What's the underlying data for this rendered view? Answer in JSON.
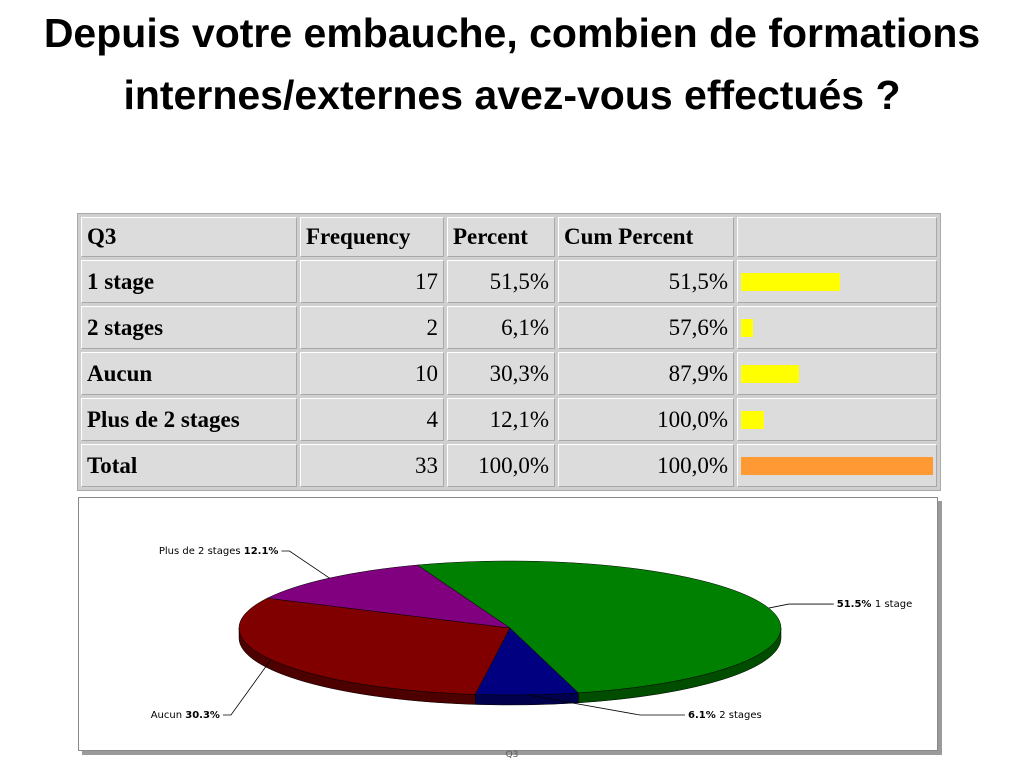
{
  "slide": {
    "title": "Depuis votre embauche, combien de formations internes/externes avez-vous effectués ?"
  },
  "table": {
    "headers": [
      "Q3",
      "Frequency",
      "Percent",
      "Cum Percent",
      ""
    ],
    "rows": [
      {
        "label": "1 stage",
        "frequency": "17",
        "percent": "51,5%",
        "cum_percent": "51,5%",
        "bar_fraction": 0.515,
        "bar_color": "#ffff00"
      },
      {
        "label": "2 stages",
        "frequency": "2",
        "percent": "6,1%",
        "cum_percent": "57,6%",
        "bar_fraction": 0.061,
        "bar_color": "#ffff00"
      },
      {
        "label": "Aucun",
        "frequency": "10",
        "percent": "30,3%",
        "cum_percent": "87,9%",
        "bar_fraction": 0.303,
        "bar_color": "#ffff00"
      },
      {
        "label": "Plus de 2 stages",
        "frequency": "4",
        "percent": "12,1%",
        "cum_percent": "100,0%",
        "bar_fraction": 0.121,
        "bar_color": "#ffff00"
      },
      {
        "label": "Total",
        "frequency": "33",
        "percent": "100,0%",
        "cum_percent": "100,0%",
        "bar_fraction": 1.0,
        "bar_color": "#ff9933"
      }
    ]
  },
  "chart_data": {
    "type": "pie",
    "title": "",
    "xlabel": "Q3",
    "slices": [
      {
        "label": "1 stage",
        "value": 51.5,
        "pct_text": "51.5%",
        "color": "#008000"
      },
      {
        "label": "2 stages",
        "value": 6.1,
        "pct_text": "6.1%",
        "color": "#000080"
      },
      {
        "label": "Aucun",
        "value": 30.3,
        "pct_text": "30.3%",
        "color": "#800000"
      },
      {
        "label": "Plus de 2 stages",
        "value": 12.1,
        "pct_text": "12.1%",
        "color": "#800080"
      }
    ]
  }
}
